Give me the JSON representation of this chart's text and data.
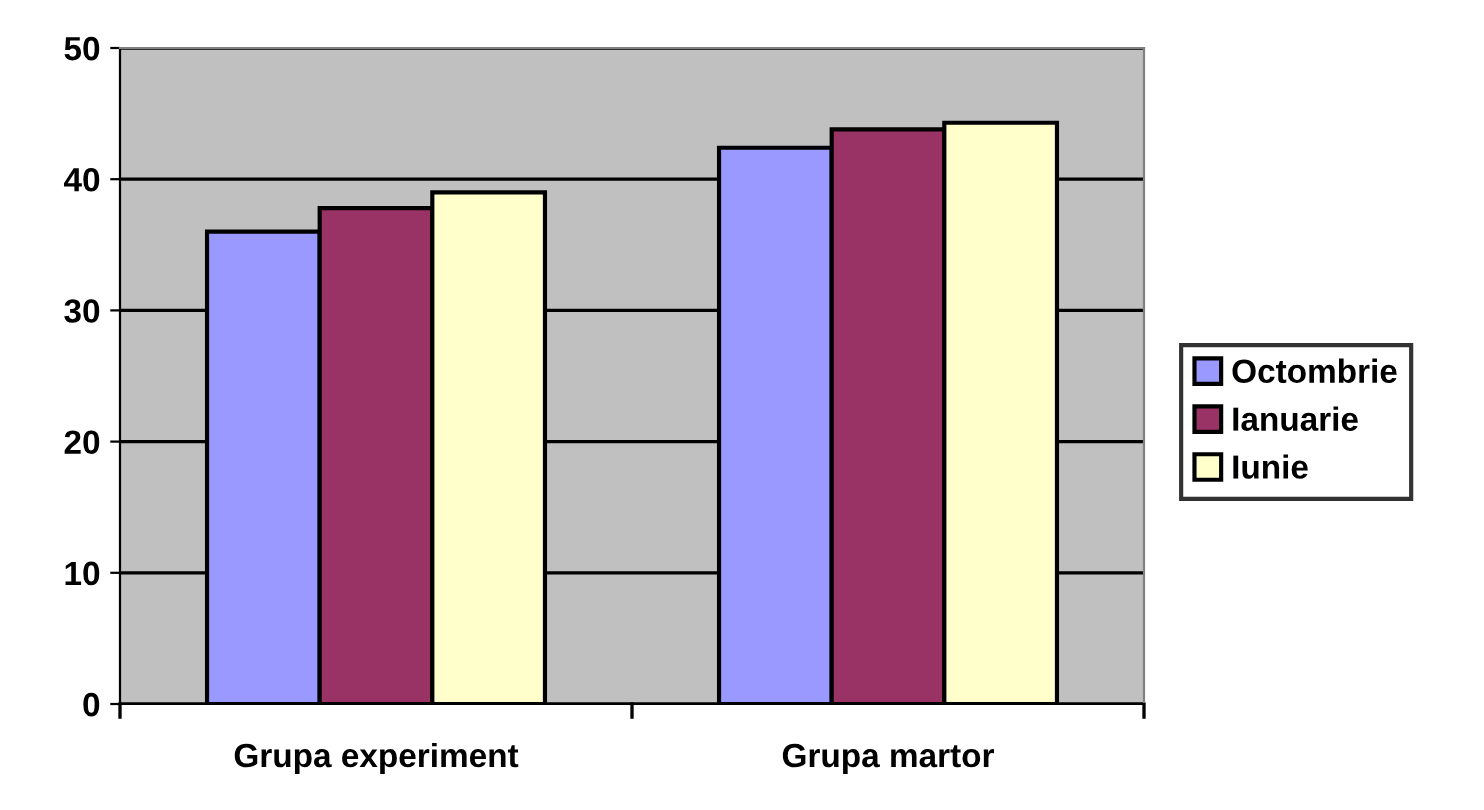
{
  "chart_data": {
    "type": "bar",
    "categories": [
      "Grupa experiment",
      "Grupa martor"
    ],
    "series": [
      {
        "name": "Octombrie",
        "color": "#9999ff",
        "values": [
          36.0,
          42.4
        ]
      },
      {
        "name": "Ianuarie",
        "color": "#993366",
        "values": [
          37.8,
          43.8
        ]
      },
      {
        "name": "Iunie",
        "color": "#ffffcc",
        "values": [
          39.0,
          44.3
        ]
      }
    ],
    "ylim": [
      0,
      50
    ],
    "yticks": [
      0,
      10,
      20,
      30,
      40,
      50
    ],
    "grid": "y",
    "legend": "right"
  }
}
